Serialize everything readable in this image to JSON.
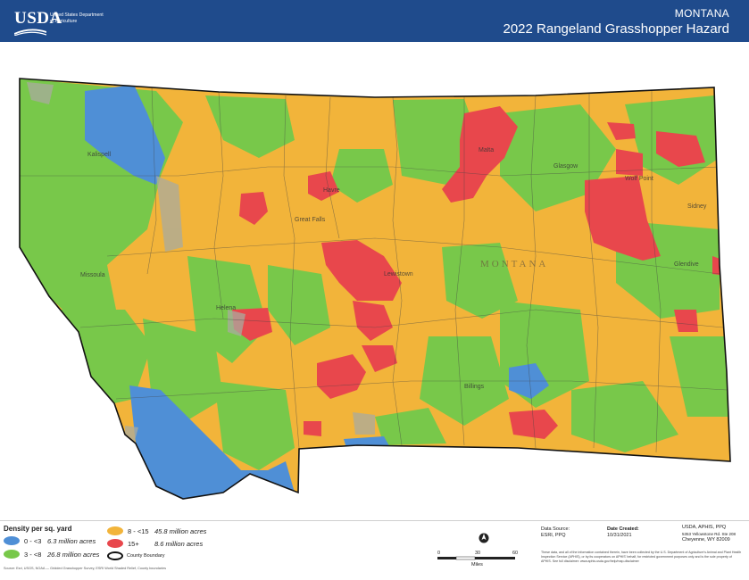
{
  "header": {
    "logo": "USDA",
    "agency": "United States Department of Agriculture",
    "state": "MONTANA",
    "title": "2022 Rangeland Grasshopper Hazard"
  },
  "colors": {
    "header_bg": "#1f4b8c",
    "class_0_3": "#4f8fd6",
    "class_3_8": "#78c84a",
    "class_8_15": "#f2b43a",
    "class_15": "#e8474c"
  },
  "legend": {
    "title": "Density per sq. yard",
    "items": [
      {
        "range": "0 - <3",
        "acres": "6.3 million acres",
        "color": "#4f8fd6"
      },
      {
        "range": "3 - <8",
        "acres": "26.8 million acres",
        "color": "#78c84a"
      },
      {
        "range": "8 - <15",
        "acres": "45.8 million acres",
        "color": "#f2b43a"
      },
      {
        "range": "15+",
        "acres": "8.6 million acres",
        "color": "#e8474c"
      }
    ],
    "county_boundary": "County Boundary"
  },
  "map_labels": {
    "state_name": "MONTANA",
    "cities": [
      "Kalispell",
      "Great Falls",
      "Havre",
      "Malta",
      "Glasgow",
      "Wolf Point",
      "Sidney",
      "Glendive",
      "Helena",
      "Missoula",
      "Billings",
      "Lewistown"
    ]
  },
  "scale": {
    "ticks": [
      "0",
      "30",
      "60"
    ],
    "unit": "Miles"
  },
  "data_source": {
    "label": "Data Source:",
    "value": "ESRI, PPQ"
  },
  "date_created": {
    "label": "Date Created:",
    "value": "10/31/2021"
  },
  "address": {
    "line1": "USDA, APHIS, PPQ",
    "line2": "5353 Yellowstone Rd. Ste 208",
    "line3": "Cheyenne, WY 82009"
  },
  "disclaimer": "These data, and all of the information contained therein, have been collected by the U.S. Department of Agriculture's Animal and Plant Health Inspection Service (APHIS), or by its cooperators on APHIS' behalf, for restricted government purposes only and is the sole property of APHIS. See full disclaimer: www.aphis.usda.gov/help/map-disclaimer",
  "credit": "Source: Esri, USGS, NOAA — Gridded Grasshopper Survey, ESRI World Shaded Relief, County boundaries"
}
